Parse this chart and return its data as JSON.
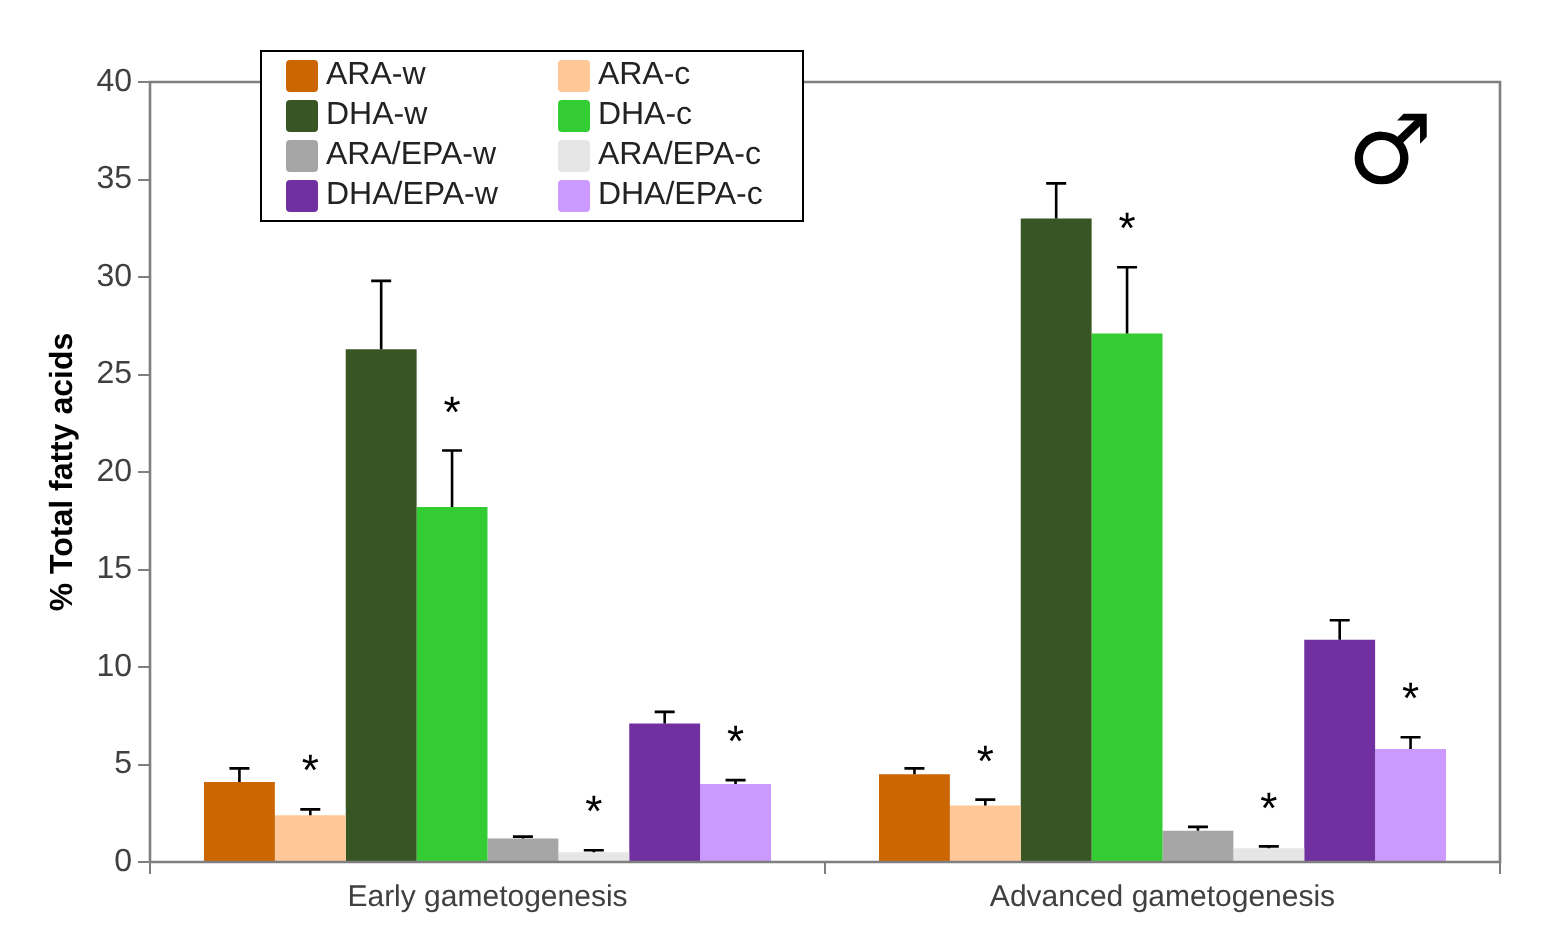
{
  "chart_data": {
    "type": "bar",
    "ylabel": "% Total fatty acids",
    "categories": [
      "Early gametogenesis",
      "Advanced gametogenesis"
    ],
    "series": [
      {
        "name": "ARA-w",
        "color": "#cc6600",
        "values": [
          4.1,
          4.5
        ],
        "errors": [
          0.7,
          0.3
        ]
      },
      {
        "name": "ARA-c",
        "color": "#ffc896",
        "values": [
          2.4,
          2.9
        ],
        "errors": [
          0.3,
          0.3
        ]
      },
      {
        "name": "DHA-w",
        "color": "#375623",
        "values": [
          26.3,
          33.0
        ],
        "errors": [
          3.5,
          1.8
        ]
      },
      {
        "name": "DHA-c",
        "color": "#33cc33",
        "values": [
          18.2,
          27.1
        ],
        "errors": [
          2.9,
          3.4
        ]
      },
      {
        "name": "ARA/EPA-w",
        "color": "#a6a6a6",
        "values": [
          1.2,
          1.6
        ],
        "errors": [
          0.1,
          0.2
        ]
      },
      {
        "name": "ARA/EPA-c",
        "color": "#e6e6e6",
        "values": [
          0.5,
          0.7
        ],
        "errors": [
          0.1,
          0.1
        ]
      },
      {
        "name": "DHA/EPA-w",
        "color": "#7030a0",
        "values": [
          7.1,
          11.4
        ],
        "errors": [
          0.6,
          1.0
        ]
      },
      {
        "name": "DHA/EPA-c",
        "color": "#cc99ff",
        "values": [
          4.0,
          5.8
        ],
        "errors": [
          0.2,
          0.6
        ]
      }
    ],
    "ylim": [
      0,
      40
    ],
    "yticks": [
      0,
      5,
      10,
      15,
      20,
      25,
      30,
      35,
      40
    ],
    "grid": false,
    "legend": "top left",
    "annotations": [
      "*",
      "*",
      "*",
      "*",
      "*",
      "*",
      "*",
      "*",
      "♂"
    ]
  }
}
